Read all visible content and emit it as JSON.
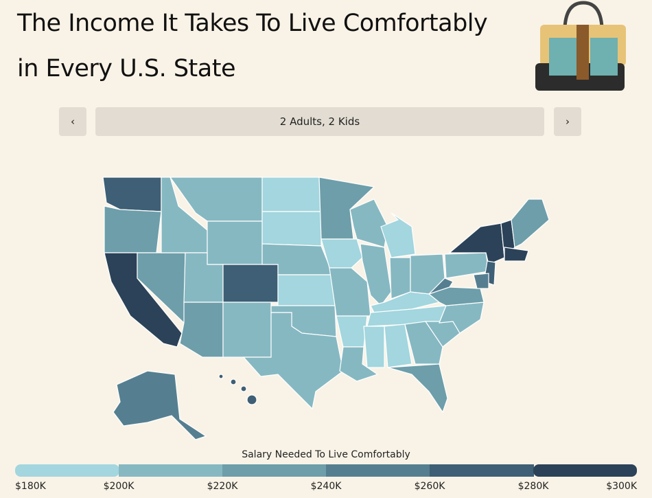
{
  "header": {
    "title_line1": "The Income It Takes To Live Comfortably",
    "title_line2": "in Every U.S. State"
  },
  "nav": {
    "prev": "‹",
    "label": "2 Adults, 2 Kids",
    "next": "›"
  },
  "legend": {
    "title": "Salary Needed To Live Comfortably",
    "colors": [
      "#a3d6de",
      "#86b8c2",
      "#6d9eaa",
      "#557f90",
      "#3e5f75",
      "#2b4258"
    ],
    "ticks": [
      "$180K",
      "$200K",
      "$220K",
      "$240K",
      "$260K",
      "$280K",
      "$300K"
    ]
  }
}
